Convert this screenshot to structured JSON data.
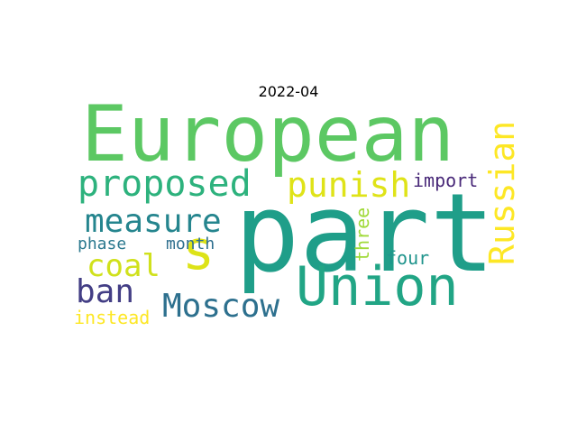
{
  "title": "2022-04",
  "words": [
    {
      "text": "European",
      "color": "#5cc863"
    },
    {
      "text": "part",
      "color": "#1f9e89"
    },
    {
      "text": "Union",
      "color": "#21a585"
    },
    {
      "text": "s",
      "color": "#dde318"
    },
    {
      "text": "proposed",
      "color": "#2db27d"
    },
    {
      "text": "punish",
      "color": "#dfe318"
    },
    {
      "text": "measure",
      "color": "#25858e"
    },
    {
      "text": "Russian",
      "color": "#fde725"
    },
    {
      "text": "coal",
      "color": "#d0e11c"
    },
    {
      "text": "Moscow",
      "color": "#2d708e"
    },
    {
      "text": "ban",
      "color": "#433e85"
    },
    {
      "text": "import",
      "color": "#482878"
    },
    {
      "text": "phase",
      "color": "#2a788e"
    },
    {
      "text": "month",
      "color": "#2e6f8e"
    },
    {
      "text": "three",
      "color": "#a0da39"
    },
    {
      "text": "four",
      "color": "#1f948c"
    },
    {
      "text": "instead",
      "color": "#fde725"
    }
  ]
}
